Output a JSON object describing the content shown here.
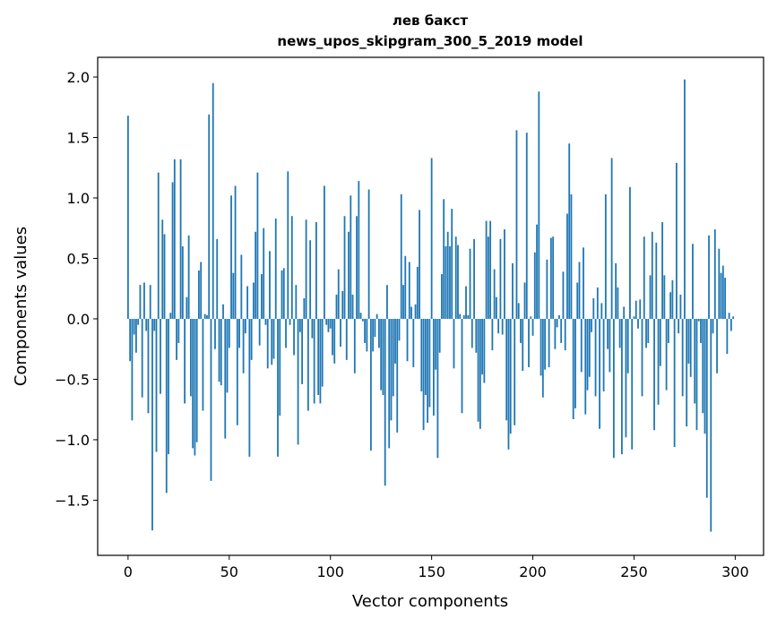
{
  "chart_data": {
    "type": "bar",
    "title": [
      "лев бакст",
      "news_upos_skipgram_300_5_2019 model"
    ],
    "xlabel": "Vector components",
    "ylabel": "Components values",
    "xlim": [
      -15,
      314
    ],
    "ylim": [
      -1.956,
      2.163
    ],
    "xticks": [
      0,
      50,
      100,
      150,
      200,
      250,
      300
    ],
    "xtick_labels": [
      "0",
      "50",
      "100",
      "150",
      "200",
      "250",
      "300"
    ],
    "yticks": [
      -1.5,
      -1.0,
      -0.5,
      0.0,
      0.5,
      1.0,
      1.5,
      2.0
    ],
    "ytick_labels": [
      "−1.5",
      "−1.0",
      "−0.5",
      "0.0",
      "0.5",
      "1.0",
      "1.5",
      "2.0"
    ],
    "grid": false,
    "color": "#1f77b4",
    "values": [
      1.68,
      -0.35,
      -0.84,
      -0.13,
      -0.28,
      -0.05,
      0.28,
      -0.65,
      0.3,
      -0.1,
      -0.78,
      0.28,
      -1.75,
      -0.1,
      -1.1,
      1.21,
      -0.62,
      0.82,
      0.7,
      -1.44,
      -1.12,
      0.05,
      1.13,
      1.32,
      -0.34,
      -0.2,
      1.32,
      0.6,
      -0.7,
      0.18,
      0.69,
      -0.64,
      -1.07,
      -1.13,
      -1.02,
      0.4,
      0.47,
      -0.76,
      0.04,
      0.03,
      1.69,
      -1.34,
      1.95,
      -0.25,
      0.66,
      -0.52,
      -0.55,
      0.12,
      -0.99,
      -0.61,
      -0.24,
      1.02,
      0.38,
      1.1,
      -0.88,
      -0.24,
      0.53,
      -0.45,
      -0.12,
      0.27,
      -1.14,
      -0.34,
      0.3,
      0.72,
      1.21,
      -0.22,
      0.37,
      0.75,
      -0.05,
      -0.41,
      0.56,
      -0.38,
      -0.33,
      0.83,
      -1.14,
      -0.8,
      0.4,
      0.42,
      -0.24,
      1.22,
      -0.05,
      0.85,
      -0.3,
      0.28,
      -1.04,
      -0.11,
      -0.54,
      0.17,
      0.82,
      -0.76,
      0.65,
      -0.16,
      -0.7,
      0.8,
      -0.63,
      -0.7,
      -0.56,
      1.1,
      -0.05,
      -0.11,
      -0.08,
      -0.3,
      -0.37,
      0.2,
      0.41,
      -0.23,
      0.23,
      0.85,
      -0.34,
      0.72,
      1.02,
      0.2,
      -0.45,
      0.85,
      1.14,
      0.05,
      -0.02,
      -0.2,
      -0.27,
      1.07,
      -1.09,
      -0.27,
      -0.15,
      0.04,
      -0.24,
      -0.59,
      -0.63,
      -1.38,
      0.28,
      -1.07,
      -0.84,
      -0.64,
      -0.37,
      -0.94,
      -0.18,
      1.03,
      0.28,
      0.52,
      -0.35,
      0.47,
      0.1,
      -0.4,
      0.12,
      0.43,
      0.9,
      -0.6,
      -0.92,
      -0.63,
      -0.86,
      -0.73,
      1.33,
      -0.8,
      -0.42,
      -1.15,
      -0.28,
      0.37,
      0.99,
      0.6,
      0.72,
      0.6,
      0.91,
      -0.41,
      0.68,
      0.61,
      0.04,
      -0.78,
      0.03,
      0.27,
      0.03,
      0.58,
      -0.24,
      0.66,
      -0.28,
      -0.85,
      -0.91,
      -0.46,
      -0.53,
      0.81,
      0.68,
      0.81,
      -0.26,
      0.41,
      0.18,
      -0.12,
      0.66,
      -0.13,
      0.74,
      -0.84,
      -1.08,
      -0.95,
      0.46,
      -0.88,
      1.56,
      0.13,
      -0.2,
      -0.43,
      0.3,
      1.54,
      -0.4,
      0.02,
      -0.14,
      0.55,
      0.78,
      1.88,
      -0.47,
      -0.65,
      -0.42,
      0.49,
      -0.4,
      0.67,
      0.68,
      -0.25,
      -0.07,
      0.03,
      -0.2,
      0.39,
      -0.26,
      0.87,
      1.45,
      1.03,
      -0.83,
      -0.74,
      0.3,
      0.47,
      -0.44,
      0.59,
      -0.79,
      -0.59,
      -0.48,
      -0.11,
      0.17,
      -0.64,
      0.26,
      -0.91,
      0.13,
      -0.6,
      1.03,
      -0.25,
      -0.44,
      1.33,
      -1.15,
      0.46,
      0.26,
      -0.24,
      -1.12,
      0.1,
      -0.98,
      -0.45,
      1.09,
      -1.08,
      0.02,
      0.15,
      -0.08,
      0.16,
      -0.64,
      0.68,
      -0.24,
      -0.2,
      0.36,
      0.72,
      -0.92,
      0.63,
      -0.71,
      -0.39,
      0.8,
      0.36,
      -0.59,
      -0.2,
      0.22,
      0.32,
      -1.06,
      1.29,
      -0.12,
      0.2,
      -0.64,
      1.98,
      -0.89,
      -0.37,
      -0.48,
      0.62,
      -0.7,
      -0.92,
      -0.02,
      -0.2,
      -0.78,
      -0.95,
      -1.48,
      0.69,
      -1.76,
      -0.12,
      0.74,
      -0.45,
      0.58,
      0.38,
      0.44,
      0.34,
      -0.29,
      0.05,
      -0.1,
      0.02
    ]
  }
}
